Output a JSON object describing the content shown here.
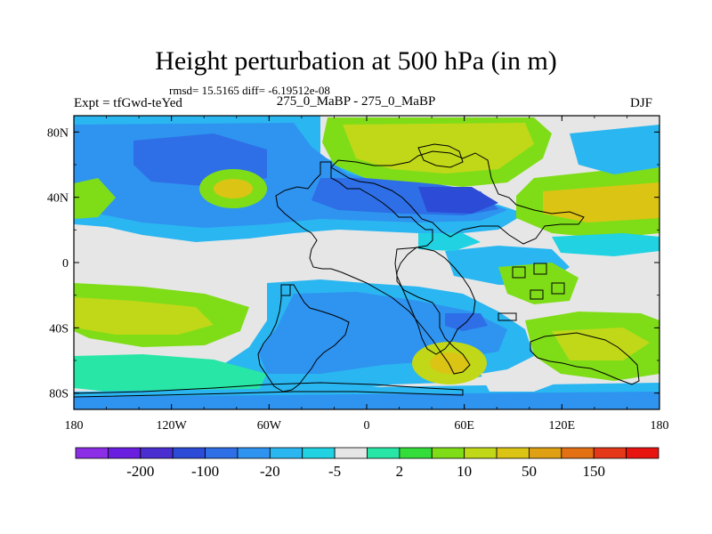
{
  "chart_data": {
    "type": "heatmap",
    "title": "Height perturbation at 500 hPa (in m)",
    "stats_line": "rmsd= 15.5165 diff= -6.19512e-08",
    "left_label": "Expt = tfGwd-teYed",
    "center_label": "275_0_MaBP - 275_0_MaBP",
    "right_label": "DJF",
    "x_range": [
      -180,
      180
    ],
    "y_range": [
      -90,
      90
    ],
    "x_ticks": [
      {
        "value": -180,
        "label": "180"
      },
      {
        "value": -120,
        "label": "120W"
      },
      {
        "value": -60,
        "label": "60W"
      },
      {
        "value": 0,
        "label": "0"
      },
      {
        "value": 60,
        "label": "60E"
      },
      {
        "value": 120,
        "label": "120E"
      },
      {
        "value": 180,
        "label": "180"
      }
    ],
    "y_ticks": [
      {
        "value": 80,
        "label": "80N"
      },
      {
        "value": 40,
        "label": "40N"
      },
      {
        "value": 0,
        "label": "0"
      },
      {
        "value": -40,
        "label": "40S"
      },
      {
        "value": -80,
        "label": "80S"
      }
    ],
    "colorbar": {
      "colors": [
        "#8b2ee6",
        "#6a1fe0",
        "#4a2ed0",
        "#2c4bd6",
        "#2e6ee6",
        "#2f93f0",
        "#2ab6f0",
        "#20d2e2",
        "#e6e6e6",
        "#27e6a6",
        "#34dd3a",
        "#7fdd18",
        "#c0d818",
        "#dcc414",
        "#e0a014",
        "#e47014",
        "#e43818",
        "#e81410"
      ],
      "labels": [
        {
          "after_index": 1,
          "text": "-200"
        },
        {
          "after_index": 3,
          "text": "-100"
        },
        {
          "after_index": 5,
          "text": "-20"
        },
        {
          "after_index": 7,
          "text": "-5"
        },
        {
          "after_index": 9,
          "text": "2"
        },
        {
          "after_index": 11,
          "text": "10"
        },
        {
          "after_index": 13,
          "text": "50"
        },
        {
          "after_index": 15,
          "text": "150"
        }
      ]
    },
    "field_features": [
      {
        "region": "North Pacific / North America",
        "level": "-20 to -5"
      },
      {
        "region": "Arctic / Eurasia high latitudes",
        "level": "10 to 50"
      },
      {
        "region": "Central Asia",
        "level": "-20"
      },
      {
        "region": "Tropics",
        "level": "-2 to 2"
      },
      {
        "region": "Southern mid-latitudes",
        "level": "2 to 10"
      }
    ]
  }
}
